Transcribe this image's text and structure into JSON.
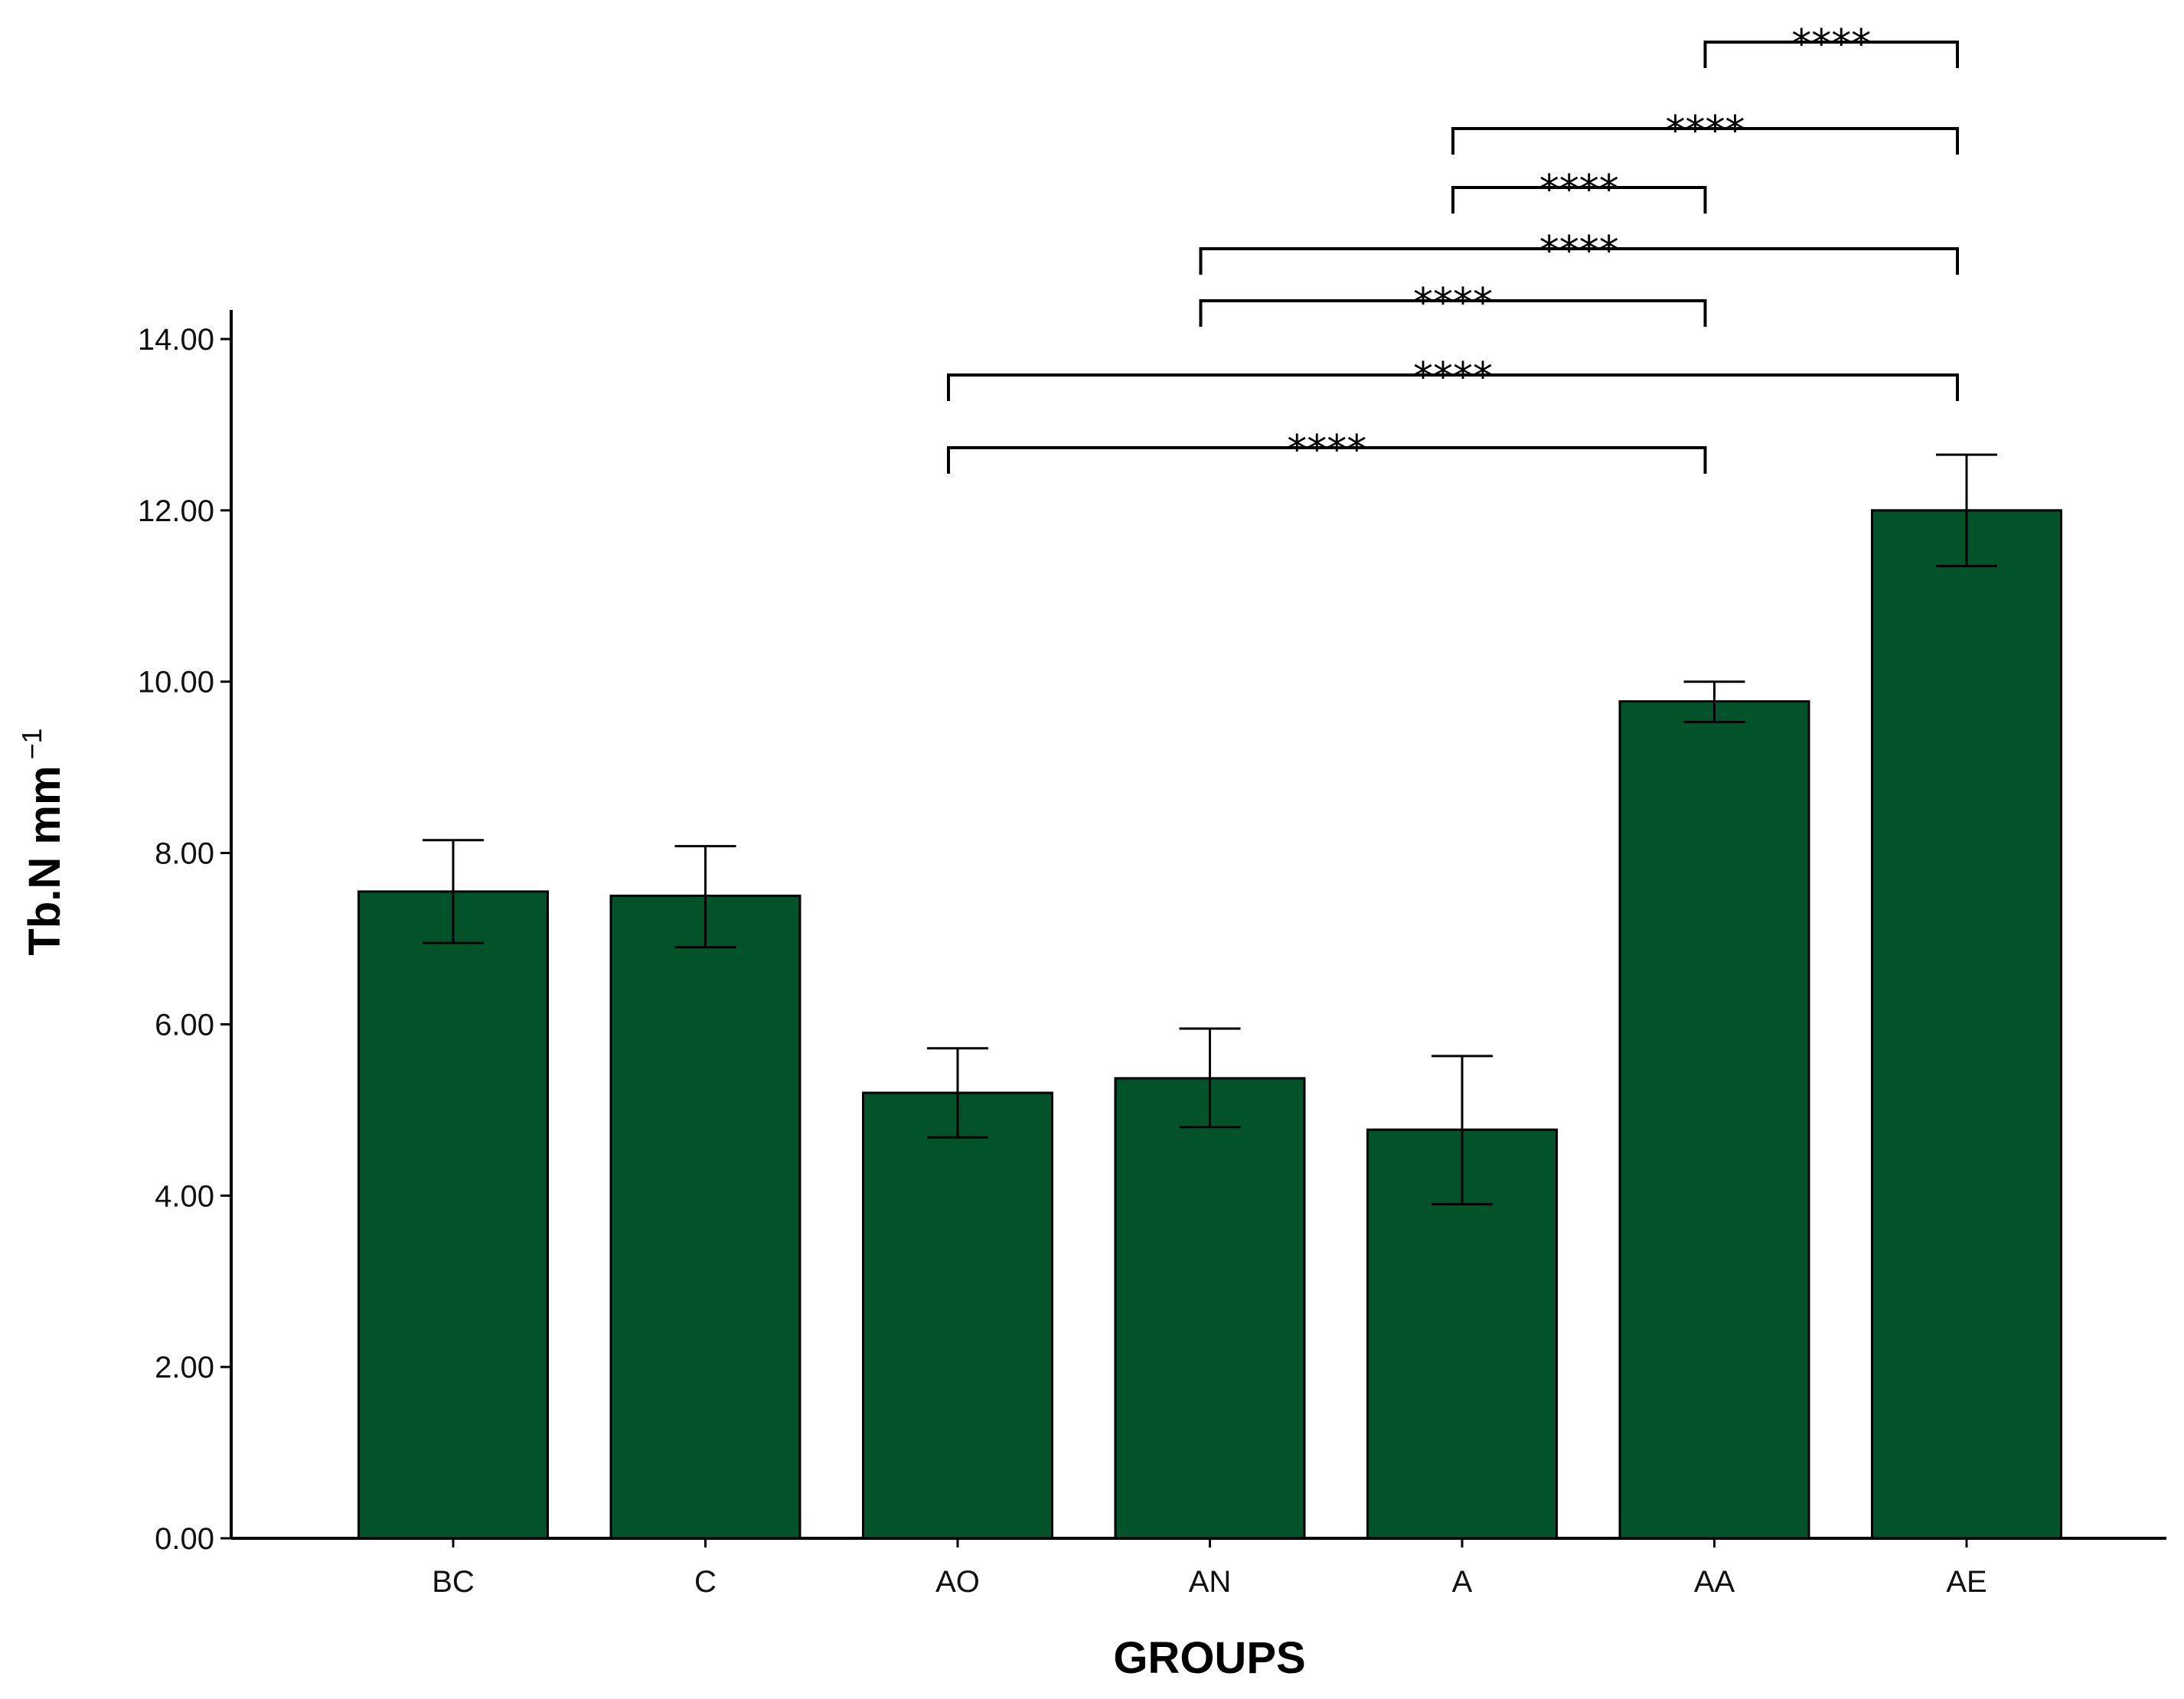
{
  "chart_data": {
    "type": "bar",
    "title": "",
    "xlabel": "GROUPS",
    "ylabel": "Tb.N mm",
    "ylabel_superscript": "−1",
    "ylim": [
      0,
      14
    ],
    "yticks": [
      "0.00",
      "2.00",
      "4.00",
      "6.00",
      "8.00",
      "10.00",
      "12.00",
      "14.00"
    ],
    "categories": [
      "BC",
      "C",
      "AO",
      "AN",
      "A",
      "AA",
      "AE"
    ],
    "values": [
      7.55,
      7.5,
      5.2,
      5.37,
      4.77,
      9.77,
      12.0
    ],
    "error_low": [
      6.95,
      6.9,
      4.68,
      4.8,
      3.9,
      9.53,
      11.35
    ],
    "error_high": [
      8.15,
      8.08,
      5.72,
      5.95,
      5.63,
      10.0,
      12.65
    ],
    "bar_color": "#02522A",
    "significance": [
      {
        "from": "AA",
        "to": "AE",
        "label": "****"
      },
      {
        "from": "A",
        "to": "AE",
        "label": "****"
      },
      {
        "from": "A",
        "to": "AA",
        "label": "****"
      },
      {
        "from": "AN",
        "to": "AE",
        "label": "****"
      },
      {
        "from": "AN",
        "to": "AA",
        "label": "****"
      },
      {
        "from": "AO",
        "to": "AE",
        "label": "****"
      },
      {
        "from": "AO",
        "to": "AA",
        "label": "****"
      }
    ]
  }
}
